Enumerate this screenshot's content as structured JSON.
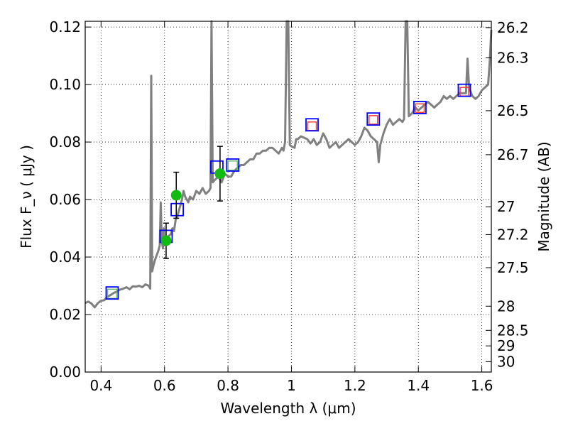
{
  "chart_data": {
    "type": "line",
    "xlabel": "Wavelength  λ (μm)",
    "ylabel": "Flux  F_ν  ( μJy )",
    "ylabel_right": "Magnitude (AB)",
    "xlim": [
      0.35,
      1.63
    ],
    "ylim": [
      0.0,
      0.122
    ],
    "grid": true,
    "x_ticks": [
      0.4,
      0.6,
      0.8,
      1.0,
      1.2,
      1.4,
      1.6
    ],
    "x_tick_labels": [
      "0.4",
      "0.6",
      "0.8",
      "1",
      "1.2",
      "1.4",
      "1.6"
    ],
    "y_ticks": [
      0.0,
      0.02,
      0.04,
      0.06,
      0.08,
      0.1,
      0.12
    ],
    "y_tick_labels": [
      "0.00",
      "0.02",
      "0.04",
      "0.06",
      "0.08",
      "0.10",
      "0.12"
    ],
    "right_axis_ticks": [
      {
        "label": "26.2",
        "flux": 0.1198
      },
      {
        "label": "26.3",
        "flux": 0.1093
      },
      {
        "label": "26.5",
        "flux": 0.0909
      },
      {
        "label": "26.7",
        "flux": 0.0756
      },
      {
        "label": "27",
        "flux": 0.0575
      },
      {
        "label": "27.2",
        "flux": 0.0478
      },
      {
        "label": "27.5",
        "flux": 0.0363
      },
      {
        "label": "28",
        "flux": 0.0229
      },
      {
        "label": "28.5",
        "flux": 0.0145
      },
      {
        "label": "29",
        "flux": 0.0091
      },
      {
        "label": "30",
        "flux": 0.0036
      }
    ],
    "colors": {
      "spectrum": "#808080",
      "blue_square": "#0000ff",
      "green_square": "#66bb66",
      "red_square": "#ff3333",
      "green_point": "#11bb11",
      "error_bar": "#000000"
    },
    "series": [
      {
        "style": "spectrum-line",
        "points": [
          [
            0.35,
            0.024
          ],
          [
            0.36,
            0.0245
          ],
          [
            0.37,
            0.0238
          ],
          [
            0.38,
            0.0225
          ],
          [
            0.39,
            0.024
          ],
          [
            0.4,
            0.0248
          ],
          [
            0.41,
            0.025
          ],
          [
            0.42,
            0.0262
          ],
          [
            0.43,
            0.0268
          ],
          [
            0.44,
            0.0275
          ],
          [
            0.45,
            0.028
          ],
          [
            0.46,
            0.0287
          ],
          [
            0.47,
            0.029
          ],
          [
            0.48,
            0.0295
          ],
          [
            0.49,
            0.0288
          ],
          [
            0.5,
            0.0298
          ],
          [
            0.51,
            0.0297
          ],
          [
            0.52,
            0.03
          ],
          [
            0.53,
            0.0295
          ],
          [
            0.54,
            0.0305
          ],
          [
            0.55,
            0.03
          ],
          [
            0.555,
            0.029
          ],
          [
            0.558,
            0.103
          ],
          [
            0.561,
            0.035
          ],
          [
            0.565,
            0.037
          ],
          [
            0.57,
            0.039
          ],
          [
            0.58,
            0.042
          ],
          [
            0.585,
            0.044
          ],
          [
            0.588,
            0.059
          ],
          [
            0.591,
            0.046
          ],
          [
            0.595,
            0.043
          ],
          [
            0.598,
            0.05
          ],
          [
            0.6,
            0.045
          ],
          [
            0.61,
            0.047
          ],
          [
            0.62,
            0.048
          ],
          [
            0.625,
            0.05
          ],
          [
            0.63,
            0.049
          ],
          [
            0.635,
            0.053
          ],
          [
            0.64,
            0.054
          ],
          [
            0.645,
            0.056
          ],
          [
            0.65,
            0.058
          ],
          [
            0.655,
            0.06
          ],
          [
            0.66,
            0.063
          ],
          [
            0.665,
            0.061
          ],
          [
            0.67,
            0.06
          ],
          [
            0.675,
            0.059
          ],
          [
            0.68,
            0.061
          ],
          [
            0.69,
            0.06
          ],
          [
            0.7,
            0.063
          ],
          [
            0.71,
            0.062
          ],
          [
            0.72,
            0.064
          ],
          [
            0.73,
            0.062
          ],
          [
            0.74,
            0.063
          ],
          [
            0.745,
            0.064
          ],
          [
            0.748,
            0.122
          ],
          [
            0.752,
            0.066
          ],
          [
            0.76,
            0.067
          ],
          [
            0.77,
            0.068
          ],
          [
            0.78,
            0.066
          ],
          [
            0.79,
            0.069
          ],
          [
            0.8,
            0.068
          ],
          [
            0.81,
            0.068
          ],
          [
            0.82,
            0.07
          ],
          [
            0.83,
            0.071
          ],
          [
            0.84,
            0.072
          ],
          [
            0.85,
            0.072
          ],
          [
            0.86,
            0.073
          ],
          [
            0.87,
            0.074
          ],
          [
            0.88,
            0.074
          ],
          [
            0.89,
            0.076
          ],
          [
            0.9,
            0.076
          ],
          [
            0.91,
            0.077
          ],
          [
            0.92,
            0.077
          ],
          [
            0.93,
            0.078
          ],
          [
            0.94,
            0.078
          ],
          [
            0.95,
            0.077
          ],
          [
            0.96,
            0.076
          ],
          [
            0.97,
            0.078
          ],
          [
            0.975,
            0.077
          ],
          [
            0.98,
            0.08
          ],
          [
            0.985,
            0.122
          ],
          [
            0.99,
            0.122
          ],
          [
            0.995,
            0.079
          ],
          [
            1.0,
            0.0785
          ],
          [
            1.01,
            0.078
          ],
          [
            1.015,
            0.081
          ],
          [
            1.02,
            0.081
          ],
          [
            1.03,
            0.082
          ],
          [
            1.04,
            0.0815
          ],
          [
            1.05,
            0.081
          ],
          [
            1.06,
            0.0795
          ],
          [
            1.07,
            0.081
          ],
          [
            1.08,
            0.079
          ],
          [
            1.09,
            0.08
          ],
          [
            1.1,
            0.083
          ],
          [
            1.11,
            0.081
          ],
          [
            1.12,
            0.078
          ],
          [
            1.13,
            0.079
          ],
          [
            1.14,
            0.08
          ],
          [
            1.15,
            0.078
          ],
          [
            1.16,
            0.079
          ],
          [
            1.17,
            0.08
          ],
          [
            1.18,
            0.081
          ],
          [
            1.19,
            0.08
          ],
          [
            1.2,
            0.079
          ],
          [
            1.21,
            0.08
          ],
          [
            1.22,
            0.082
          ],
          [
            1.23,
            0.085
          ],
          [
            1.24,
            0.084
          ],
          [
            1.25,
            0.082
          ],
          [
            1.26,
            0.081
          ],
          [
            1.27,
            0.08
          ],
          [
            1.275,
            0.073
          ],
          [
            1.28,
            0.079
          ],
          [
            1.29,
            0.083
          ],
          [
            1.3,
            0.086
          ],
          [
            1.31,
            0.088
          ],
          [
            1.32,
            0.086
          ],
          [
            1.33,
            0.087
          ],
          [
            1.34,
            0.088
          ],
          [
            1.35,
            0.087
          ],
          [
            1.355,
            0.088
          ],
          [
            1.36,
            0.122
          ],
          [
            1.365,
            0.122
          ],
          [
            1.37,
            0.089
          ],
          [
            1.38,
            0.09
          ],
          [
            1.39,
            0.092
          ],
          [
            1.4,
            0.091
          ],
          [
            1.41,
            0.092
          ],
          [
            1.42,
            0.093
          ],
          [
            1.43,
            0.094
          ],
          [
            1.44,
            0.093
          ],
          [
            1.45,
            0.092
          ],
          [
            1.46,
            0.093
          ],
          [
            1.47,
            0.094
          ],
          [
            1.48,
            0.096
          ],
          [
            1.49,
            0.095
          ],
          [
            1.5,
            0.096
          ],
          [
            1.51,
            0.095
          ],
          [
            1.52,
            0.096
          ],
          [
            1.53,
            0.097
          ],
          [
            1.54,
            0.097
          ],
          [
            1.55,
            0.097
          ],
          [
            1.555,
            0.109
          ],
          [
            1.56,
            0.099
          ],
          [
            1.57,
            0.096
          ],
          [
            1.58,
            0.095
          ],
          [
            1.59,
            0.096
          ],
          [
            1.6,
            0.098
          ],
          [
            1.61,
            0.099
          ],
          [
            1.62,
            0.1
          ],
          [
            1.625,
            0.108
          ],
          [
            1.63,
            0.119
          ]
        ]
      },
      {
        "style": "blue-squares",
        "points": [
          [
            0.435,
            0.0275
          ],
          [
            0.605,
            0.0472
          ],
          [
            0.64,
            0.0565
          ],
          [
            0.765,
            0.0713
          ],
          [
            0.815,
            0.072
          ],
          [
            1.065,
            0.086
          ],
          [
            1.258,
            0.088
          ],
          [
            1.405,
            0.092
          ],
          [
            1.545,
            0.098
          ]
        ]
      },
      {
        "style": "green-squares",
        "points": [
          [
            0.435,
            0.0272
          ],
          [
            0.815,
            0.0718
          ]
        ]
      },
      {
        "style": "red-squares",
        "points": [
          [
            1.065,
            0.0855
          ],
          [
            1.258,
            0.0877
          ],
          [
            1.405,
            0.0918
          ],
          [
            1.545,
            0.0975
          ]
        ]
      },
      {
        "style": "green-points-with-errors",
        "points": [
          {
            "x": 0.605,
            "y": 0.0457,
            "err_low": 0.0395,
            "err_high": 0.0518
          },
          {
            "x": 0.637,
            "y": 0.0615,
            "err_low": 0.0535,
            "err_high": 0.0695
          },
          {
            "x": 0.775,
            "y": 0.069,
            "err_low": 0.0595,
            "err_high": 0.0785
          }
        ]
      }
    ]
  }
}
